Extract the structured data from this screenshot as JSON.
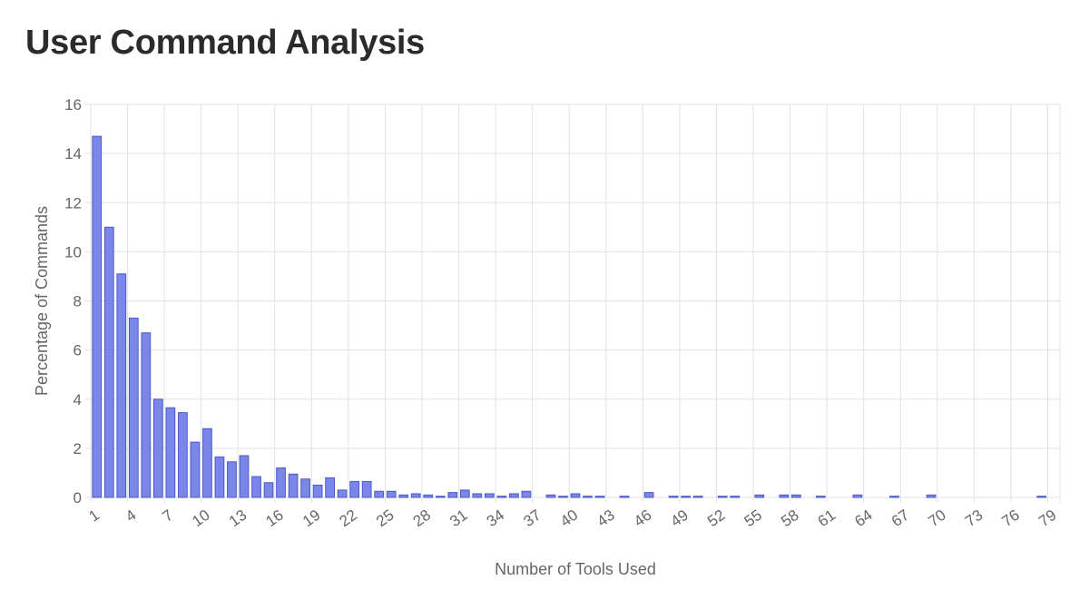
{
  "page": {
    "title": "User Command Analysis"
  },
  "colors": {
    "bar_fill": "#7b87e8",
    "bar_stroke": "#4b58c8",
    "grid": "#e2e2e2",
    "text": "#666666"
  },
  "chart_data": {
    "type": "bar",
    "xlabel": "Number of Tools Used",
    "ylabel": "Percentage of Commands",
    "ylim": [
      0,
      16
    ],
    "yticks": [
      0,
      2,
      4,
      6,
      8,
      10,
      12,
      14,
      16
    ],
    "grid": true,
    "legend": "none",
    "categories": [
      1,
      2,
      3,
      4,
      5,
      6,
      7,
      8,
      9,
      10,
      11,
      12,
      13,
      14,
      15,
      16,
      17,
      18,
      19,
      20,
      21,
      22,
      23,
      24,
      25,
      26,
      27,
      28,
      29,
      30,
      31,
      32,
      33,
      34,
      35,
      36,
      37,
      38,
      39,
      40,
      41,
      42,
      43,
      44,
      45,
      46,
      47,
      48,
      49,
      50,
      51,
      52,
      53,
      54,
      55,
      56,
      57,
      58,
      59,
      60,
      61,
      62,
      63,
      64,
      65,
      66,
      67,
      68,
      69,
      70,
      71,
      72,
      73,
      74,
      75,
      76,
      77,
      78,
      79
    ],
    "x_tick_labels": [
      "1",
      "4",
      "7",
      "10",
      "13",
      "16",
      "19",
      "22",
      "25",
      "28",
      "31",
      "34",
      "37",
      "40",
      "43",
      "46",
      "49",
      "52",
      "55",
      "58",
      "61",
      "64",
      "67",
      "70",
      "73",
      "76",
      "79"
    ],
    "values": [
      14.7,
      11.0,
      9.1,
      7.3,
      6.7,
      4.0,
      3.65,
      3.45,
      2.25,
      2.8,
      1.65,
      1.45,
      1.7,
      0.85,
      0.6,
      1.2,
      0.95,
      0.75,
      0.5,
      0.8,
      0.3,
      0.65,
      0.65,
      0.25,
      0.25,
      0.1,
      0.15,
      0.1,
      0.05,
      0.2,
      0.3,
      0.15,
      0.15,
      0.05,
      0.15,
      0.25,
      0,
      0.1,
      0.05,
      0.15,
      0.05,
      0.05,
      0,
      0.05,
      0,
      0.2,
      0,
      0.05,
      0.05,
      0.05,
      0,
      0.05,
      0.05,
      0,
      0.1,
      0,
      0.1,
      0.1,
      0,
      0.05,
      0,
      0,
      0.1,
      0,
      0,
      0.05,
      0,
      0,
      0.1,
      0,
      0,
      0,
      0,
      0,
      0,
      0,
      0,
      0.05,
      0
    ]
  }
}
